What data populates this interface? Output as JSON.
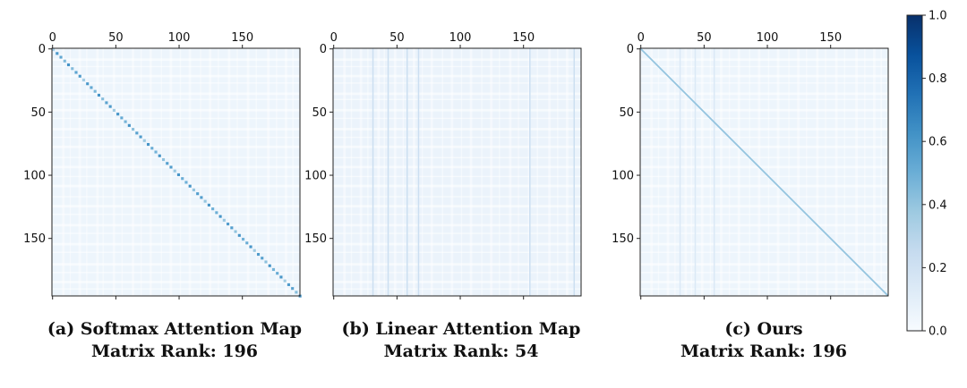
{
  "chart_data": {
    "type": "heatmap",
    "matrix_size": 196,
    "color_scale": {
      "min": 0.0,
      "max": 1.0,
      "low_color": "#f7fbff",
      "high_color": "#08306b",
      "colormap": "Blues"
    },
    "colorbar": {
      "ticks": [
        0.0,
        0.2,
        0.4,
        0.6,
        0.8,
        1.0
      ],
      "tick_labels": [
        "0.0",
        "0.2",
        "0.4",
        "0.6",
        "0.8",
        "1.0"
      ],
      "placement": "right"
    },
    "panels": [
      {
        "id": "softmax",
        "caption_line1": "(a) Softmax Attention Map",
        "caption_line2": "Matrix Rank: 196",
        "x_ticks": [
          0,
          50,
          100,
          150
        ],
        "x_tick_labels": [
          "0",
          "50",
          "100",
          "150"
        ],
        "y_ticks": [
          0,
          50,
          100,
          150
        ],
        "y_tick_labels": [
          "0",
          "50",
          "100",
          "150"
        ],
        "x_axis_position": "top",
        "base_value": 0.05,
        "diagonal_value": 0.62,
        "pattern": "near-diagonal-dominant with faint block banding"
      },
      {
        "id": "linear",
        "caption_line1": "(b) Linear Attention Map",
        "caption_line2": "Matrix Rank: 54",
        "x_ticks": [
          0,
          50,
          100,
          150
        ],
        "x_tick_labels": [
          "0",
          "50",
          "100",
          "150"
        ],
        "y_ticks": [
          0,
          50,
          100,
          150
        ],
        "y_tick_labels": [
          "0",
          "50",
          "100",
          "150"
        ],
        "x_axis_position": "top",
        "base_value": 0.06,
        "diagonal_value": null,
        "strong_columns": [
          31,
          43,
          58,
          67,
          155,
          190
        ],
        "column_value": 0.22,
        "pattern": "low-rank vertical stripes, no diagonal"
      },
      {
        "id": "ours",
        "caption_line1": "(c) Ours",
        "caption_line2": "Matrix Rank: 196",
        "x_ticks": [
          0,
          50,
          100,
          150
        ],
        "x_tick_labels": [
          "0",
          "50",
          "100",
          "150"
        ],
        "y_ticks": [
          0,
          50,
          100,
          150
        ],
        "y_tick_labels": [
          "0",
          "50",
          "100",
          "150"
        ],
        "x_axis_position": "top",
        "base_value": 0.05,
        "diagonal_value": 0.4,
        "strong_columns": [
          31,
          43,
          58
        ],
        "column_value": 0.14,
        "pattern": "uniform diagonal plus faint vertical stripes"
      }
    ]
  }
}
